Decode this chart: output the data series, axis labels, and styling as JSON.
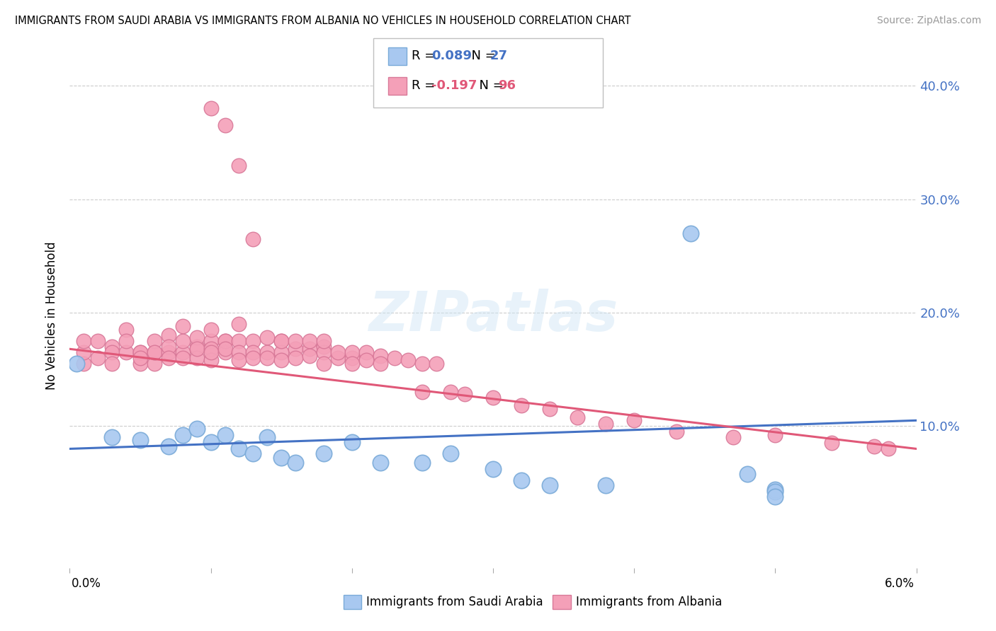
{
  "title": "IMMIGRANTS FROM SAUDI ARABIA VS IMMIGRANTS FROM ALBANIA NO VEHICLES IN HOUSEHOLD CORRELATION CHART",
  "source": "Source: ZipAtlas.com",
  "ylabel": "No Vehicles in Household",
  "legend_label1": "Immigrants from Saudi Arabia",
  "legend_label2": "Immigrants from Albania",
  "color_saudi": "#a8c8f0",
  "color_albania": "#f4a0b8",
  "line_color_saudi": "#4472c4",
  "line_color_albania": "#e05878",
  "edge_saudi": "#7aaad8",
  "edge_albania": "#d87898",
  "watermark": "ZIPatlas",
  "xmin": 0.0,
  "xmax": 0.06,
  "ymin": -0.025,
  "ymax": 0.42,
  "saudi_x": [
    0.0005,
    0.003,
    0.005,
    0.007,
    0.008,
    0.009,
    0.01,
    0.011,
    0.012,
    0.013,
    0.014,
    0.015,
    0.016,
    0.018,
    0.02,
    0.022,
    0.025,
    0.027,
    0.03,
    0.032,
    0.034,
    0.038,
    0.044,
    0.048,
    0.05,
    0.05,
    0.05
  ],
  "saudi_y": [
    0.155,
    0.09,
    0.088,
    0.082,
    0.092,
    0.098,
    0.086,
    0.092,
    0.08,
    0.076,
    0.09,
    0.072,
    0.068,
    0.076,
    0.086,
    0.068,
    0.068,
    0.076,
    0.062,
    0.052,
    0.048,
    0.048,
    0.27,
    0.058,
    0.044,
    0.042,
    0.038
  ],
  "albania_x": [
    0.001,
    0.001,
    0.001,
    0.002,
    0.002,
    0.003,
    0.003,
    0.003,
    0.004,
    0.004,
    0.004,
    0.005,
    0.005,
    0.005,
    0.005,
    0.006,
    0.006,
    0.006,
    0.006,
    0.007,
    0.007,
    0.007,
    0.007,
    0.008,
    0.008,
    0.008,
    0.008,
    0.009,
    0.009,
    0.009,
    0.009,
    0.01,
    0.01,
    0.01,
    0.01,
    0.01,
    0.011,
    0.011,
    0.011,
    0.011,
    0.012,
    0.012,
    0.012,
    0.012,
    0.013,
    0.013,
    0.013,
    0.014,
    0.014,
    0.014,
    0.015,
    0.015,
    0.015,
    0.015,
    0.016,
    0.016,
    0.016,
    0.017,
    0.017,
    0.017,
    0.018,
    0.018,
    0.018,
    0.018,
    0.019,
    0.019,
    0.02,
    0.02,
    0.02,
    0.021,
    0.021,
    0.022,
    0.022,
    0.023,
    0.024,
    0.025,
    0.025,
    0.026,
    0.027,
    0.028,
    0.03,
    0.032,
    0.034,
    0.036,
    0.038,
    0.04,
    0.043,
    0.047,
    0.05,
    0.054,
    0.057,
    0.058,
    0.01,
    0.011,
    0.012,
    0.013
  ],
  "albania_y": [
    0.155,
    0.165,
    0.175,
    0.175,
    0.16,
    0.17,
    0.165,
    0.155,
    0.185,
    0.165,
    0.175,
    0.155,
    0.165,
    0.165,
    0.16,
    0.155,
    0.165,
    0.175,
    0.165,
    0.165,
    0.18,
    0.17,
    0.16,
    0.165,
    0.175,
    0.188,
    0.16,
    0.17,
    0.178,
    0.16,
    0.168,
    0.175,
    0.168,
    0.185,
    0.158,
    0.165,
    0.175,
    0.165,
    0.175,
    0.168,
    0.175,
    0.19,
    0.165,
    0.158,
    0.175,
    0.165,
    0.16,
    0.178,
    0.165,
    0.16,
    0.175,
    0.165,
    0.175,
    0.158,
    0.168,
    0.175,
    0.16,
    0.168,
    0.175,
    0.162,
    0.17,
    0.165,
    0.175,
    0.155,
    0.16,
    0.165,
    0.16,
    0.165,
    0.155,
    0.165,
    0.158,
    0.162,
    0.155,
    0.16,
    0.158,
    0.13,
    0.155,
    0.155,
    0.13,
    0.128,
    0.125,
    0.118,
    0.115,
    0.108,
    0.102,
    0.105,
    0.095,
    0.09,
    0.092,
    0.085,
    0.082,
    0.08,
    0.38,
    0.365,
    0.33,
    0.265
  ],
  "saudi_line_x0": 0.0,
  "saudi_line_x1": 0.06,
  "saudi_line_y0": 0.08,
  "saudi_line_y1": 0.105,
  "albania_line_x0": 0.0,
  "albania_line_x1": 0.06,
  "albania_line_y0": 0.168,
  "albania_line_y1": 0.08
}
